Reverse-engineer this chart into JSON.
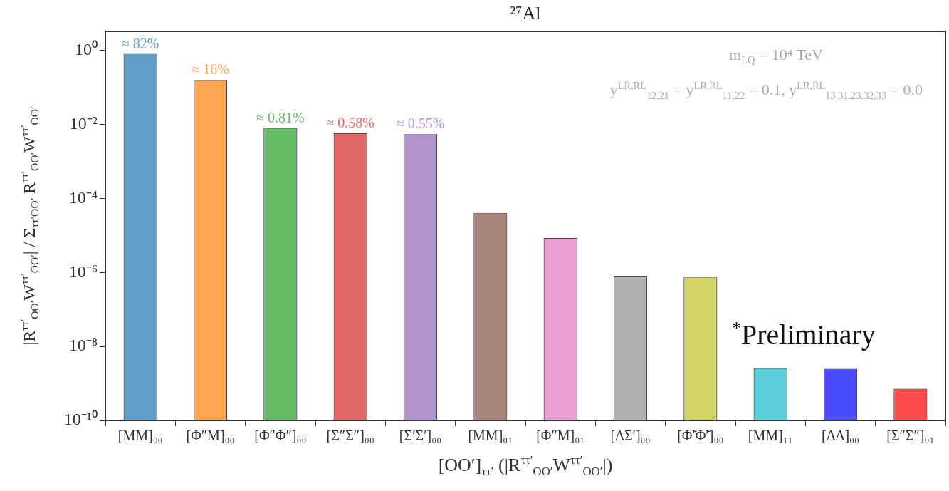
{
  "chart_data": {
    "type": "bar",
    "title": "²⁷Al",
    "xlabel": "[OO′]$_{ττ′}$  (|R$^{ττ′}$$_{OO′}$W$^{ττ′}$$_{OO′}$|)",
    "ylabel": "|R$^{ττ′}$$_{OO′}$W$^{ττ′}$$_{OO′}$| / Σ$_{ττ′OO′}$ R$^{ττ′}$$_{OO′}$W$^{ττ′}$$_{OO′}$",
    "annotations": [
      "m$_{LQ}$ = 10⁴ TeV",
      "y$^{LR,RL}$$_{12,21}$ = y$^{LR,RL}$$_{11,22}$ = 0.1,   y$^{LR,RL}$$_{13,31,23,32,33}$ = 0.0",
      "$^{*}$Preliminary"
    ],
    "categories": [
      "[MM]₀₀",
      "[Φ″M]₀₀",
      "[Φ″Φ″]₀₀",
      "[Σ″Σ″]₀₀",
      "[Σ′Σ′]₀₀",
      "[MM]₀₁",
      "[Φ″M]₀₁",
      "[ΔΣ′]₀₀",
      "[Φ̃′Φ̃′]₀₀",
      "[MM]₁₁",
      "[ΔΔ]₀₀",
      "[Σ″Σ″]₀₁"
    ],
    "values": [
      0.82,
      0.16,
      0.0081,
      0.0058,
      0.0055,
      4.1e-05,
      8.5e-06,
      7.8e-07,
      7.4e-07,
      2.6e-09,
      2.5e-09,
      7.2e-10
    ],
    "value_labels": [
      "≈ 82%",
      "≈ 16%",
      "≈ 0.81%",
      "≈ 0.58%",
      "≈ 0.55%",
      null,
      null,
      null,
      null,
      null,
      null,
      null
    ],
    "colors": [
      "#619fcb",
      "#fea553",
      "#66bc66",
      "#e26868",
      "#b294cd",
      "#a9857e",
      "#eba0d4",
      "#b0b0b0",
      "#d2d267",
      "#5ccfdb",
      "#4b4bff",
      "#ff4b4b"
    ],
    "log": true,
    "ylim": [
      1e-10,
      3.3
    ],
    "yticks": [
      {
        "value": 1,
        "label": "10⁰"
      },
      {
        "value": 0.01,
        "label": "10⁻²"
      },
      {
        "value": 0.0001,
        "label": "10⁻⁴"
      },
      {
        "value": 1e-06,
        "label": "10⁻⁶"
      },
      {
        "value": 1e-08,
        "label": "10⁻⁸"
      },
      {
        "value": 1e-10,
        "label": "10⁻¹⁰"
      }
    ],
    "grid": false,
    "legend": false
  }
}
